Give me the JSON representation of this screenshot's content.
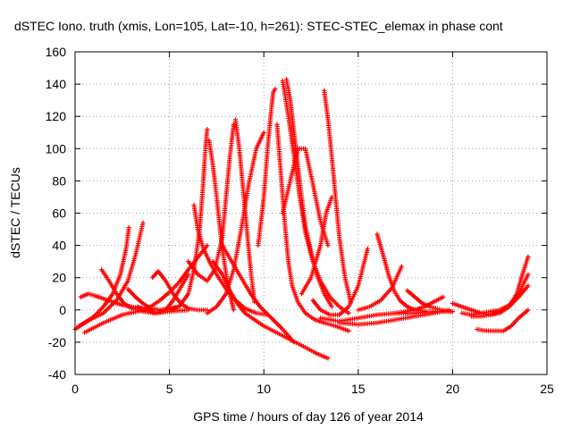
{
  "chart_data": {
    "type": "scatter",
    "title": "dSTEC Iono. truth (xmis, Lon=105, Lat=-10, h=261): STEC-STEC_elemax in phase cont",
    "xlabel": "GPS time / hours of day 126 of year 2014",
    "ylabel": "dSTEC  / TECUs",
    "xlim": [
      0,
      25
    ],
    "ylim": [
      -40,
      160
    ],
    "xticks": [
      0,
      5,
      10,
      15,
      20,
      25
    ],
    "yticks": [
      -40,
      -20,
      0,
      20,
      40,
      60,
      80,
      100,
      120,
      140,
      160
    ],
    "grid": true,
    "marker": "plus",
    "color": "#ff0000",
    "series": [
      {
        "x": [
          0.0,
          0.5,
          1.0,
          1.5,
          2.0,
          2.4,
          2.7,
          2.85
        ],
        "values": [
          -12,
          -8,
          -4,
          2,
          10,
          22,
          38,
          51
        ]
      },
      {
        "x": [
          0.2,
          0.8,
          1.5,
          2.2,
          2.8,
          3.2,
          3.6
        ],
        "values": [
          -10,
          -6,
          -2,
          6,
          18,
          34,
          54
        ]
      },
      {
        "x": [
          1.4,
          1.8,
          2.2,
          2.6,
          3.0,
          3.6,
          4.2,
          5.0,
          6.0
        ],
        "values": [
          25,
          18,
          10,
          4,
          1,
          -1,
          -2,
          -1,
          0
        ]
      },
      {
        "x": [
          0.3,
          0.7,
          1.0,
          1.5,
          2.0,
          2.5,
          3.0,
          3.5
        ],
        "values": [
          8,
          10,
          9,
          7,
          5,
          3,
          2,
          1
        ]
      },
      {
        "x": [
          0.5,
          1.5,
          2.5,
          3.3,
          4.0,
          4.5,
          5.0,
          5.5,
          6.0,
          7.0
        ],
        "values": [
          -14,
          -8,
          -3,
          -1,
          2,
          6,
          11,
          17,
          25,
          40
        ]
      },
      {
        "x": [
          2.8,
          3.2,
          3.6,
          4.0,
          4.5,
          5.0,
          5.5
        ],
        "values": [
          13,
          8,
          4,
          1,
          0,
          1,
          2
        ]
      },
      {
        "x": [
          4.1,
          4.4,
          4.8,
          5.2,
          5.6,
          6.0,
          6.5,
          7.0
        ],
        "values": [
          20,
          24,
          18,
          10,
          4,
          1,
          0,
          0
        ]
      },
      {
        "x": [
          3.3,
          3.8,
          4.3,
          4.8,
          5.2,
          5.6,
          6.0
        ],
        "values": [
          2,
          0,
          -2,
          0,
          6,
          14,
          22
        ]
      },
      {
        "x": [
          5.0,
          5.5,
          6.0,
          6.3,
          6.6,
          6.8,
          6.9,
          7.0
        ],
        "values": [
          0,
          2,
          10,
          25,
          50,
          80,
          100,
          112
        ]
      },
      {
        "x": [
          7.1,
          7.3,
          7.5,
          7.7,
          7.9,
          8.1,
          8.3,
          8.4
        ],
        "values": [
          105,
          90,
          70,
          48,
          30,
          15,
          5,
          0
        ]
      },
      {
        "x": [
          6.3,
          6.5,
          6.8,
          7.2,
          7.6,
          8.0,
          8.5,
          9.0,
          9.6,
          10.2
        ],
        "values": [
          65,
          50,
          38,
          28,
          20,
          13,
          6,
          1,
          -2,
          -3
        ]
      },
      {
        "x": [
          6.0,
          6.5,
          7.0,
          7.4,
          7.8,
          8.0,
          8.2,
          8.4
        ],
        "values": [
          30,
          22,
          18,
          25,
          45,
          70,
          95,
          115
        ]
      },
      {
        "x": [
          8.5,
          8.7,
          8.9,
          9.1,
          9.3,
          9.5
        ],
        "values": [
          118,
          100,
          75,
          50,
          25,
          5
        ]
      },
      {
        "x": [
          7.0,
          7.5,
          8.0,
          8.4,
          8.8,
          9.2,
          9.6,
          10.0
        ],
        "values": [
          -2,
          2,
          10,
          25,
          50,
          78,
          100,
          110
        ]
      },
      {
        "x": [
          7.3,
          7.8,
          8.2,
          8.6,
          9.0,
          9.5,
          10.0,
          11.0,
          12.0,
          12.8,
          13.4
        ],
        "values": [
          30,
          22,
          12,
          4,
          -2,
          -6,
          -10,
          -16,
          -22,
          -27,
          -30
        ]
      },
      {
        "x": [
          7.8,
          8.3,
          8.8,
          9.3,
          9.8,
          10.4,
          11.0,
          11.6
        ],
        "values": [
          40,
          30,
          20,
          10,
          2,
          -5,
          -12,
          -20
        ]
      },
      {
        "x": [
          9.7,
          10.0,
          10.2,
          10.4,
          10.5,
          10.6
        ],
        "values": [
          40,
          70,
          100,
          125,
          135,
          137
        ]
      },
      {
        "x": [
          10.7,
          10.9,
          11.1,
          11.3,
          11.5,
          11.8,
          12.2,
          12.7,
          13.2,
          13.8,
          14.5
        ],
        "values": [
          115,
          85,
          55,
          30,
          15,
          5,
          -2,
          -6,
          -8,
          -10,
          -13
        ]
      },
      {
        "x": [
          11.2,
          11.4,
          11.6,
          11.8,
          12.0,
          12.2,
          12.5,
          12.8,
          13.2,
          13.6
        ],
        "values": [
          143,
          130,
          110,
          90,
          70,
          52,
          36,
          22,
          10,
          2
        ]
      },
      {
        "x": [
          11.0,
          11.3,
          11.6,
          11.9,
          12.2,
          12.6,
          13.0,
          13.5,
          14.0,
          14.5
        ],
        "values": [
          142,
          120,
          95,
          70,
          48,
          30,
          18,
          8,
          2,
          -2
        ]
      },
      {
        "x": [
          13.2,
          13.4,
          13.6,
          13.8,
          14.0,
          14.3,
          14.6
        ],
        "values": [
          136,
          118,
          95,
          70,
          45,
          20,
          5
        ]
      },
      {
        "x": [
          11.0,
          11.4,
          11.8,
          12.2,
          12.6,
          13.0,
          13.4
        ],
        "values": [
          60,
          80,
          100,
          100,
          78,
          55,
          40
        ]
      },
      {
        "x": [
          12.0,
          12.5,
          13.0,
          13.3,
          13.6
        ],
        "values": [
          10,
          20,
          40,
          60,
          70
        ]
      },
      {
        "x": [
          12.6,
          13.0,
          13.5,
          14.0,
          14.5,
          15.0,
          15.5
        ],
        "values": [
          6,
          0,
          -3,
          -3,
          2,
          15,
          38
        ]
      },
      {
        "x": [
          16.0,
          16.3,
          16.6,
          16.9,
          17.2,
          17.6,
          18.0,
          18.6
        ],
        "values": [
          47,
          35,
          22,
          12,
          6,
          2,
          0,
          -1
        ]
      },
      {
        "x": [
          15.0,
          15.6,
          16.2,
          16.8,
          17.3
        ],
        "values": [
          0,
          2,
          6,
          14,
          27
        ]
      },
      {
        "x": [
          17.0,
          17.5,
          18.0,
          18.5,
          19.0,
          19.5
        ],
        "values": [
          -2,
          -1,
          0,
          2,
          5,
          8
        ]
      },
      {
        "x": [
          17.6,
          18.0,
          18.4,
          18.8,
          19.4,
          20.0
        ],
        "values": [
          12,
          8,
          4,
          2,
          0,
          -1
        ]
      },
      {
        "x": [
          13.0,
          14.0,
          15.0,
          16.0,
          17.0,
          18.0,
          19.0,
          20.0
        ],
        "values": [
          -5,
          -7,
          -5,
          -3,
          -2,
          -2,
          -1,
          -1
        ]
      },
      {
        "x": [
          20.0,
          20.5,
          21.0,
          21.5,
          22.0,
          22.5,
          23.0,
          23.4,
          23.7,
          24.0
        ],
        "values": [
          4,
          2,
          0,
          -2,
          -3,
          -2,
          2,
          10,
          22,
          33
        ]
      },
      {
        "x": [
          20.5,
          21.0,
          21.5,
          22.0,
          22.5,
          23.0,
          23.5,
          24.0
        ],
        "values": [
          -2,
          -3,
          -2,
          -1,
          0,
          3,
          10,
          22
        ]
      },
      {
        "x": [
          21.0,
          21.5,
          22.0,
          22.5,
          23.0,
          23.5,
          24.0
        ],
        "values": [
          -4,
          -4,
          -3,
          -1,
          2,
          8,
          15
        ]
      },
      {
        "x": [
          21.3,
          21.8,
          22.3,
          22.7,
          23.1,
          23.5,
          24.0
        ],
        "values": [
          -12,
          -13,
          -13,
          -13,
          -10,
          -5,
          0
        ]
      },
      {
        "x": [
          14.0,
          15.0,
          16.0,
          17.0,
          18.0,
          19.0,
          19.8
        ],
        "values": [
          -8,
          -9,
          -8,
          -6,
          -4,
          -2,
          0
        ]
      }
    ]
  }
}
